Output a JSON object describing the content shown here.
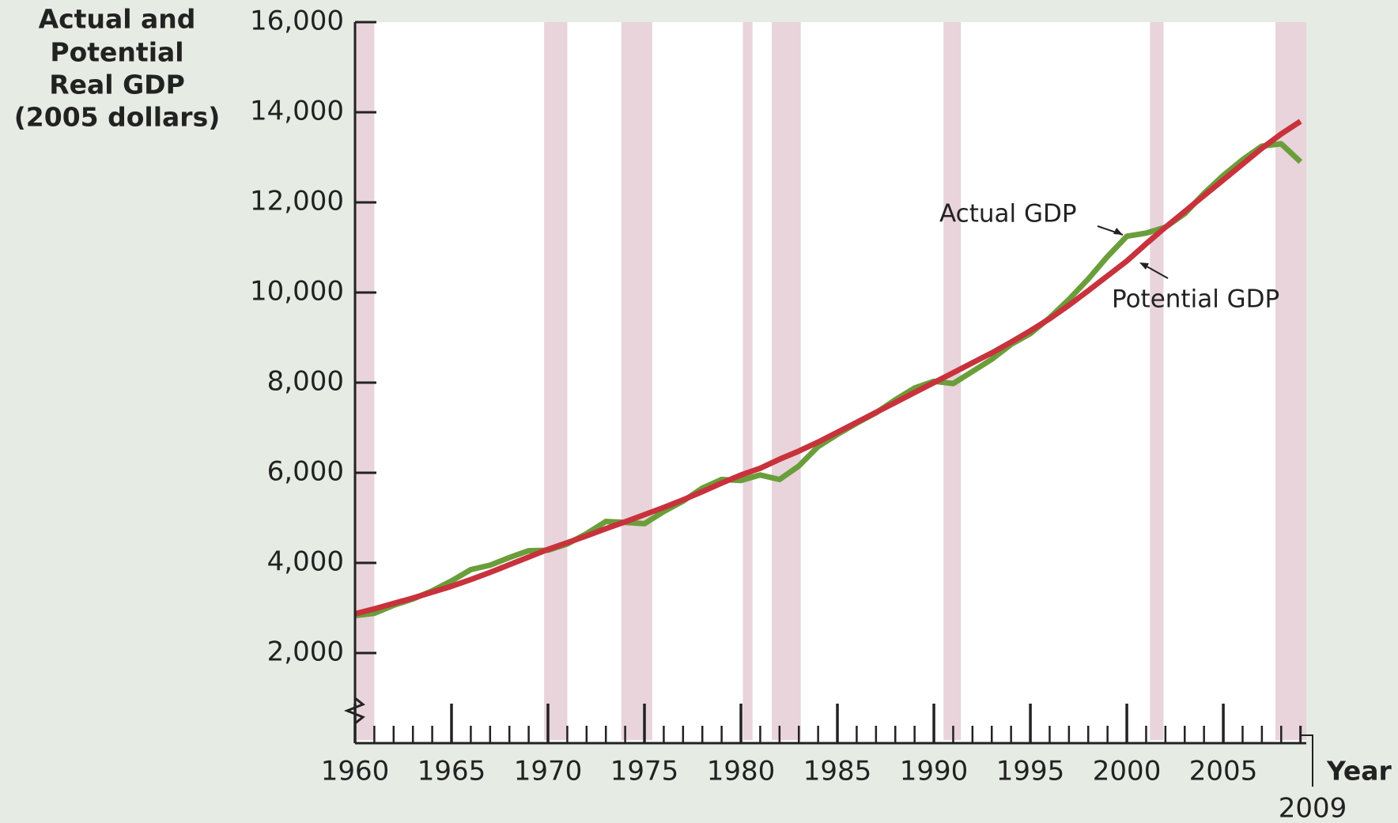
{
  "chart_data": {
    "type": "line",
    "ylabel": [
      "Actual and",
      "Potential",
      "Real GDP",
      "(2005 dollars)"
    ],
    "xlabel": "Year",
    "x": [
      1960,
      1961,
      1962,
      1963,
      1964,
      1965,
      1966,
      1967,
      1968,
      1969,
      1970,
      1971,
      1972,
      1973,
      1974,
      1975,
      1976,
      1977,
      1978,
      1979,
      1980,
      1981,
      1982,
      1983,
      1984,
      1985,
      1986,
      1987,
      1988,
      1989,
      1990,
      1991,
      1992,
      1993,
      1994,
      1995,
      1996,
      1997,
      1998,
      1999,
      2000,
      2001,
      2002,
      2003,
      2004,
      2005,
      2006,
      2007,
      2008,
      2009
    ],
    "series": [
      {
        "name": "Actual GDP",
        "color": "#6a9e3a",
        "values": [
          2830,
          2880,
          3060,
          3200,
          3380,
          3600,
          3850,
          3950,
          4120,
          4270,
          4280,
          4420,
          4650,
          4920,
          4900,
          4870,
          5140,
          5370,
          5660,
          5850,
          5830,
          5950,
          5850,
          6150,
          6580,
          6850,
          7100,
          7330,
          7620,
          7880,
          8030,
          7980,
          8250,
          8520,
          8850,
          9090,
          9440,
          9850,
          10300,
          10800,
          11250,
          11320,
          11450,
          11750,
          12200,
          12600,
          12950,
          13250,
          13300,
          12900
        ]
      },
      {
        "name": "Potential GDP",
        "color": "#c8323c",
        "values": [
          2870,
          2980,
          3100,
          3220,
          3350,
          3480,
          3630,
          3790,
          3960,
          4130,
          4300,
          4450,
          4600,
          4760,
          4910,
          5070,
          5230,
          5400,
          5580,
          5770,
          5950,
          6100,
          6300,
          6480,
          6680,
          6900,
          7120,
          7340,
          7560,
          7780,
          8000,
          8220,
          8440,
          8660,
          8900,
          9150,
          9420,
          9720,
          10040,
          10370,
          10700,
          11080,
          11450,
          11800,
          12150,
          12500,
          12850,
          13200,
          13520,
          13800
        ]
      }
    ],
    "recessions": [
      [
        1960.0,
        1961.0
      ],
      [
        1969.8,
        1971.0
      ],
      [
        1973.8,
        1975.4
      ],
      [
        1980.1,
        1980.6
      ],
      [
        1981.6,
        1983.1
      ],
      [
        1990.5,
        1991.4
      ],
      [
        2001.2,
        2001.9
      ],
      [
        2007.7,
        2009.3
      ]
    ],
    "recession_color": "#e8d4da",
    "xlim": [
      1960,
      2009.3
    ],
    "xticks": [
      1960,
      1965,
      1970,
      1975,
      1980,
      1985,
      1990,
      1995,
      2000,
      2005,
      2009
    ],
    "xminorticks": [
      1961,
      1962,
      1963,
      1964,
      1966,
      1967,
      1968,
      1969,
      1971,
      1972,
      1973,
      1974,
      1976,
      1977,
      1978,
      1979,
      1981,
      1982,
      1983,
      1984,
      1986,
      1987,
      1988,
      1989,
      1991,
      1992,
      1993,
      1994,
      1996,
      1997,
      1998,
      1999,
      2001,
      2002,
      2003,
      2004,
      2006,
      2007,
      2008
    ],
    "ylim": [
      0,
      16000
    ],
    "yticks": [
      {
        "value": 2000,
        "label": "2,000"
      },
      {
        "value": 4000,
        "label": "4,000"
      },
      {
        "value": 6000,
        "label": "6,000"
      },
      {
        "value": 8000,
        "label": "8,000"
      },
      {
        "value": 10000,
        "label": "10,000"
      },
      {
        "value": 12000,
        "label": "12,000"
      },
      {
        "value": 14000,
        "label": "14,000"
      },
      {
        "value": 16000,
        "label": "16,000"
      }
    ]
  }
}
